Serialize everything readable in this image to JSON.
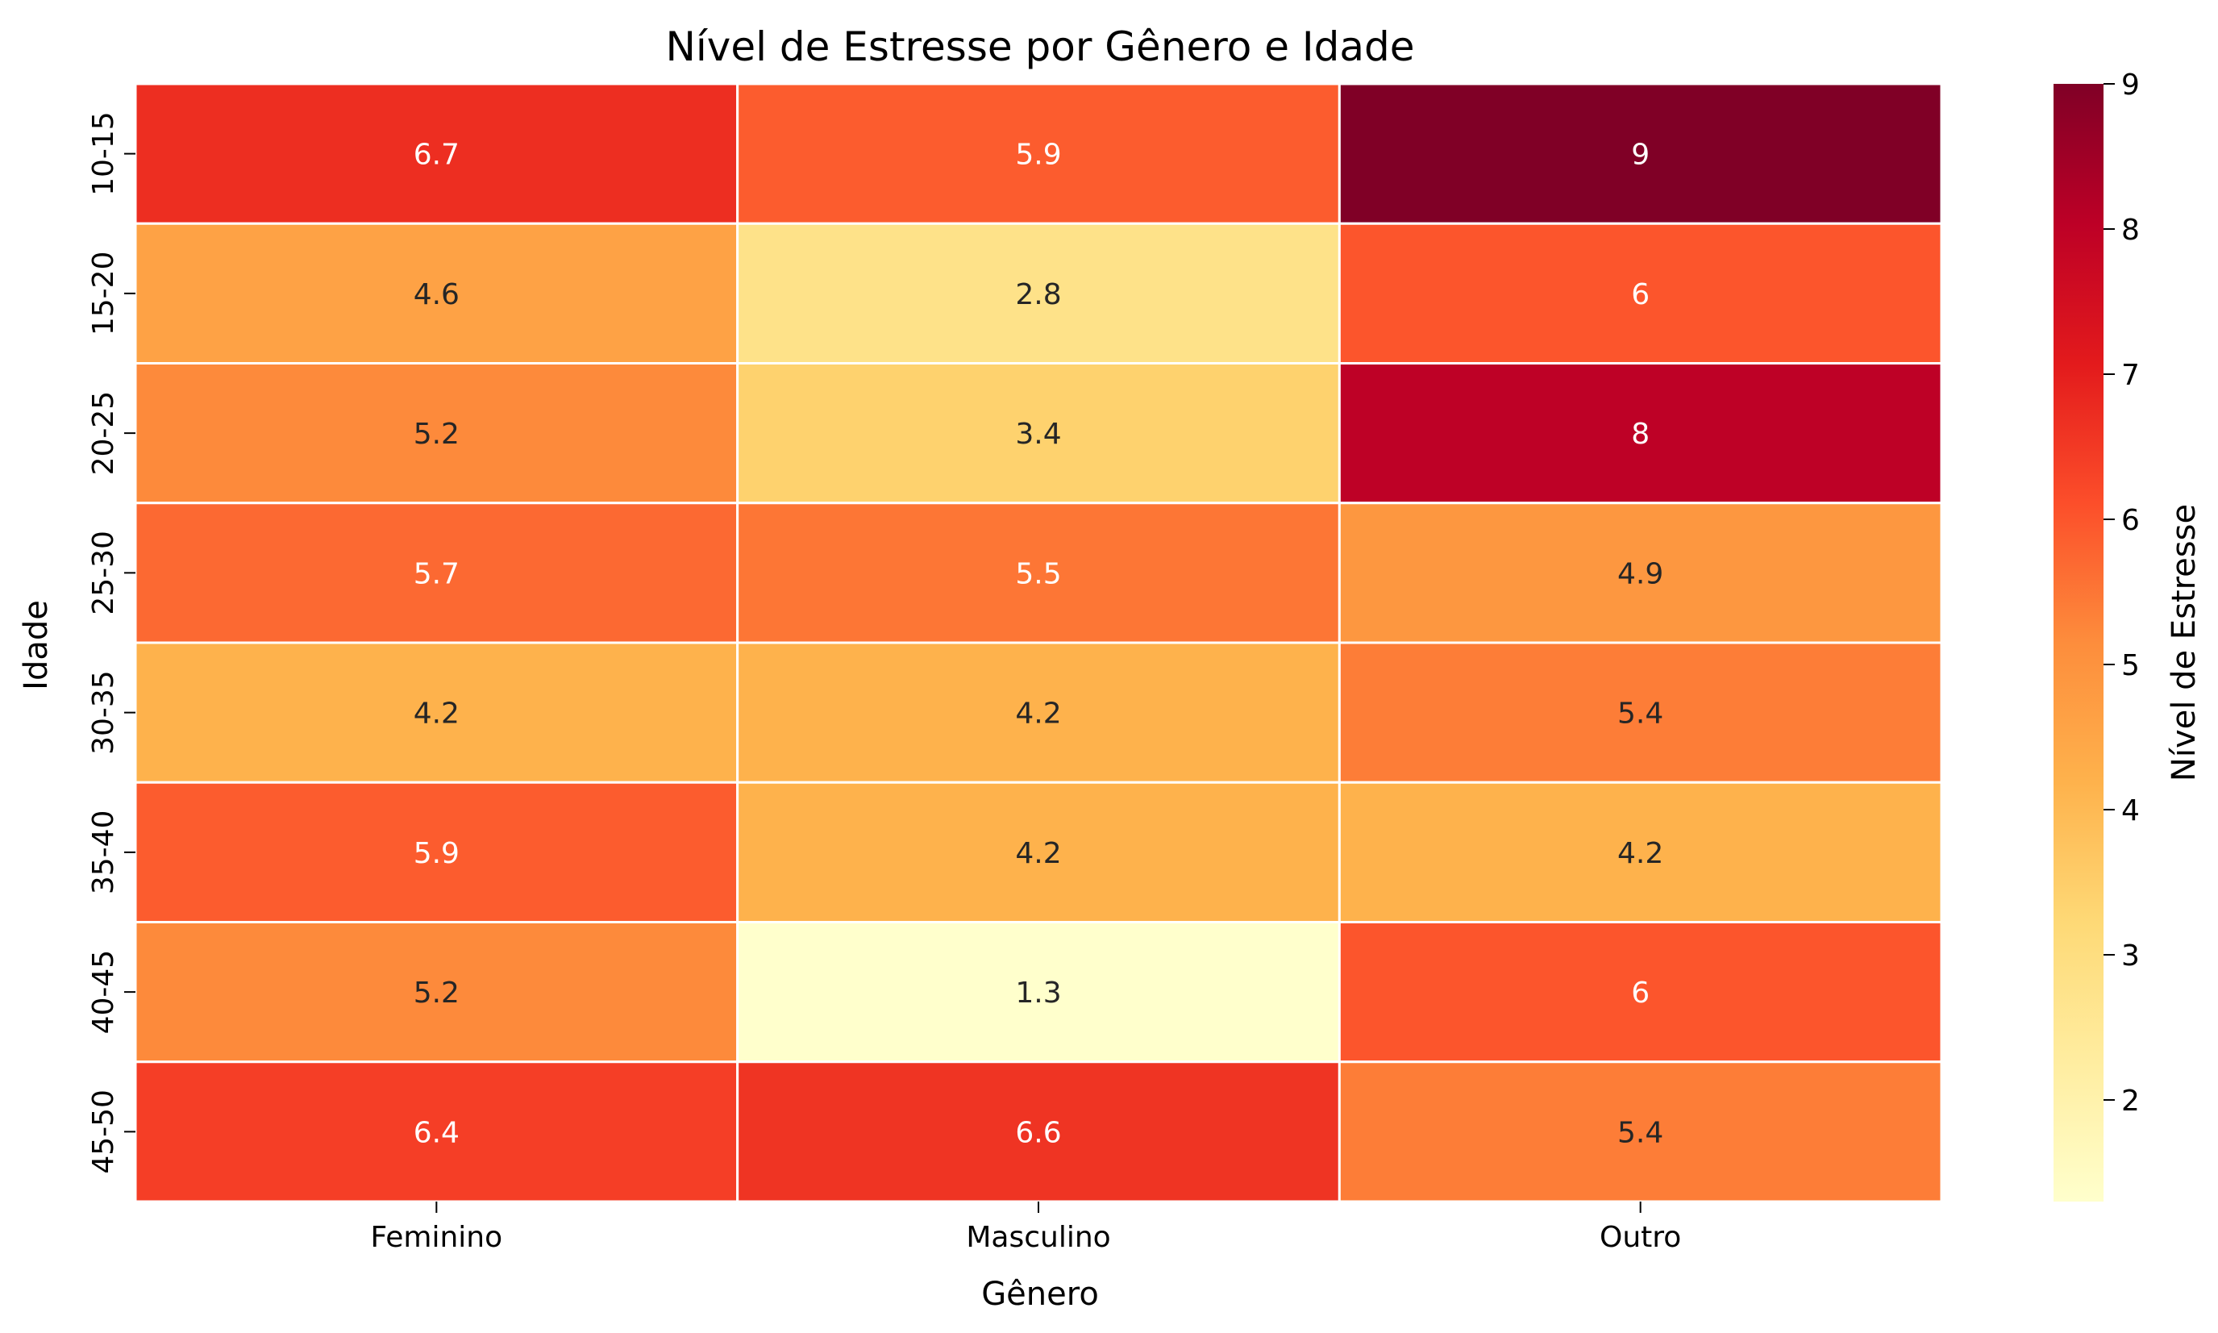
{
  "chart_data": {
    "type": "heatmap",
    "title": "Nível de Estresse por Gênero e Idade",
    "xlabel": "Gênero",
    "ylabel": "Idade",
    "x_categories": [
      "Feminino",
      "Masculino",
      "Outro"
    ],
    "y_categories": [
      "10-15",
      "15-20",
      "20-25",
      "25-30",
      "30-35",
      "35-40",
      "40-45",
      "45-50"
    ],
    "values": [
      [
        6.7,
        5.9,
        9
      ],
      [
        4.6,
        2.8,
        6
      ],
      [
        5.2,
        3.4,
        8
      ],
      [
        5.7,
        5.5,
        4.9
      ],
      [
        4.2,
        4.2,
        5.4
      ],
      [
        5.9,
        4.2,
        4.2
      ],
      [
        5.2,
        1.3,
        6
      ],
      [
        6.4,
        6.6,
        5.4
      ]
    ],
    "colormap": "YlOrRd",
    "colorbar": {
      "label": "Nível de Estresse",
      "range": [
        1.3,
        9
      ],
      "ticks": [
        2,
        3,
        4,
        5,
        6,
        7,
        8,
        9
      ]
    },
    "colormap_stops": [
      "#ffffcc",
      "#ffeda0",
      "#fed976",
      "#feb24c",
      "#fd8d3c",
      "#fc4e2a",
      "#e31a1c",
      "#bd0026",
      "#800026"
    ],
    "cell_border_color": "#ffffff",
    "annotation_colors": {
      "dark": "#262626",
      "light": "#ffffff"
    }
  }
}
